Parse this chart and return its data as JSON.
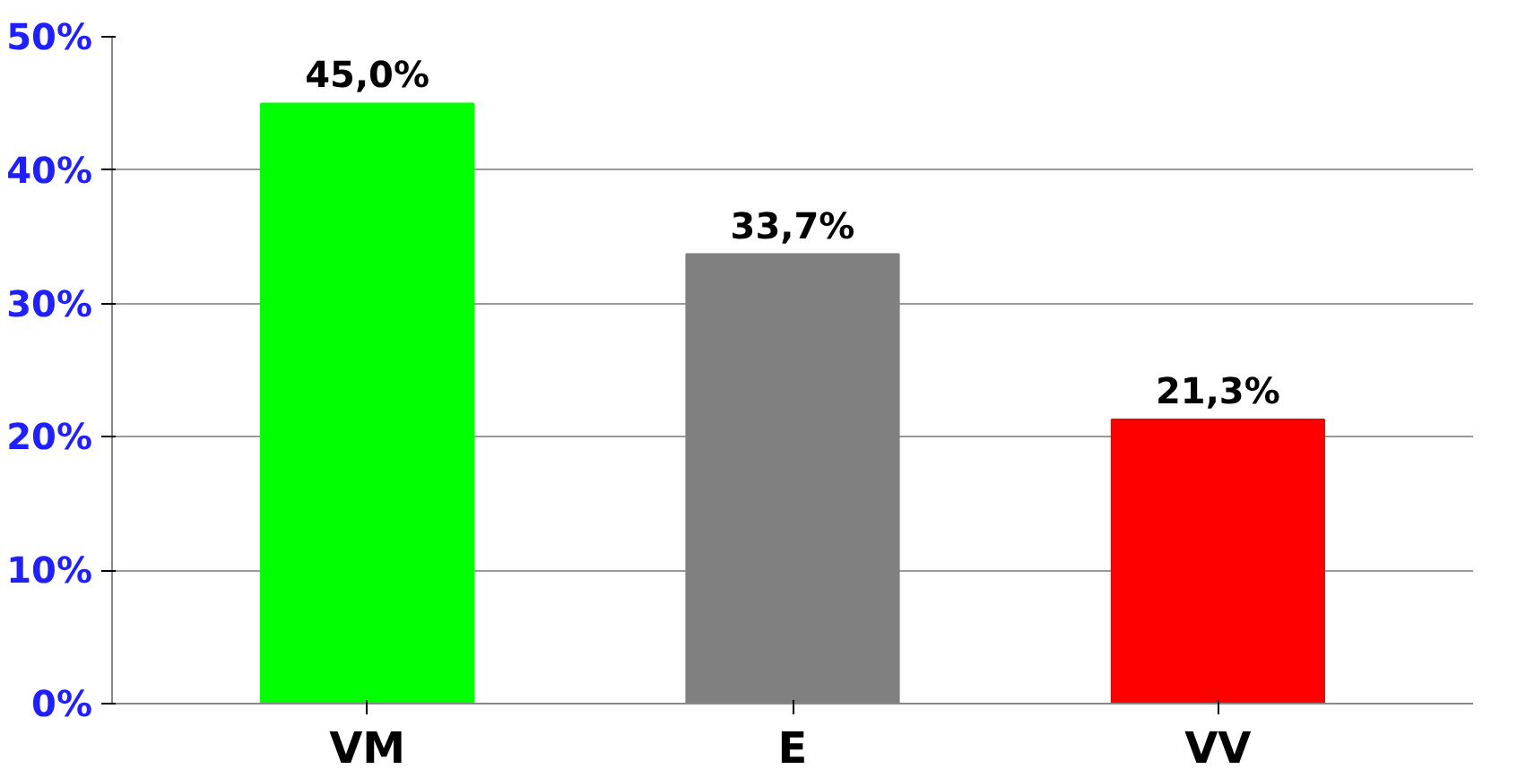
{
  "chart_data": {
    "type": "bar",
    "categories": [
      "VM",
      "E",
      "VV"
    ],
    "values": [
      45.0,
      33.7,
      21.3
    ],
    "colors": [
      "#00ff00",
      "#808080",
      "#ff0000"
    ],
    "value_labels": [
      "45,0%",
      "33,7%",
      "21,3%"
    ],
    "ylim": [
      0,
      50
    ],
    "yticks": [
      {
        "value": 0,
        "label": "0%"
      },
      {
        "value": 10,
        "label": "10%"
      },
      {
        "value": 20,
        "label": "20%"
      },
      {
        "value": 30,
        "label": "30%"
      },
      {
        "value": 40,
        "label": "40%"
      },
      {
        "value": 50,
        "label": "50%"
      }
    ],
    "grid": "y"
  }
}
